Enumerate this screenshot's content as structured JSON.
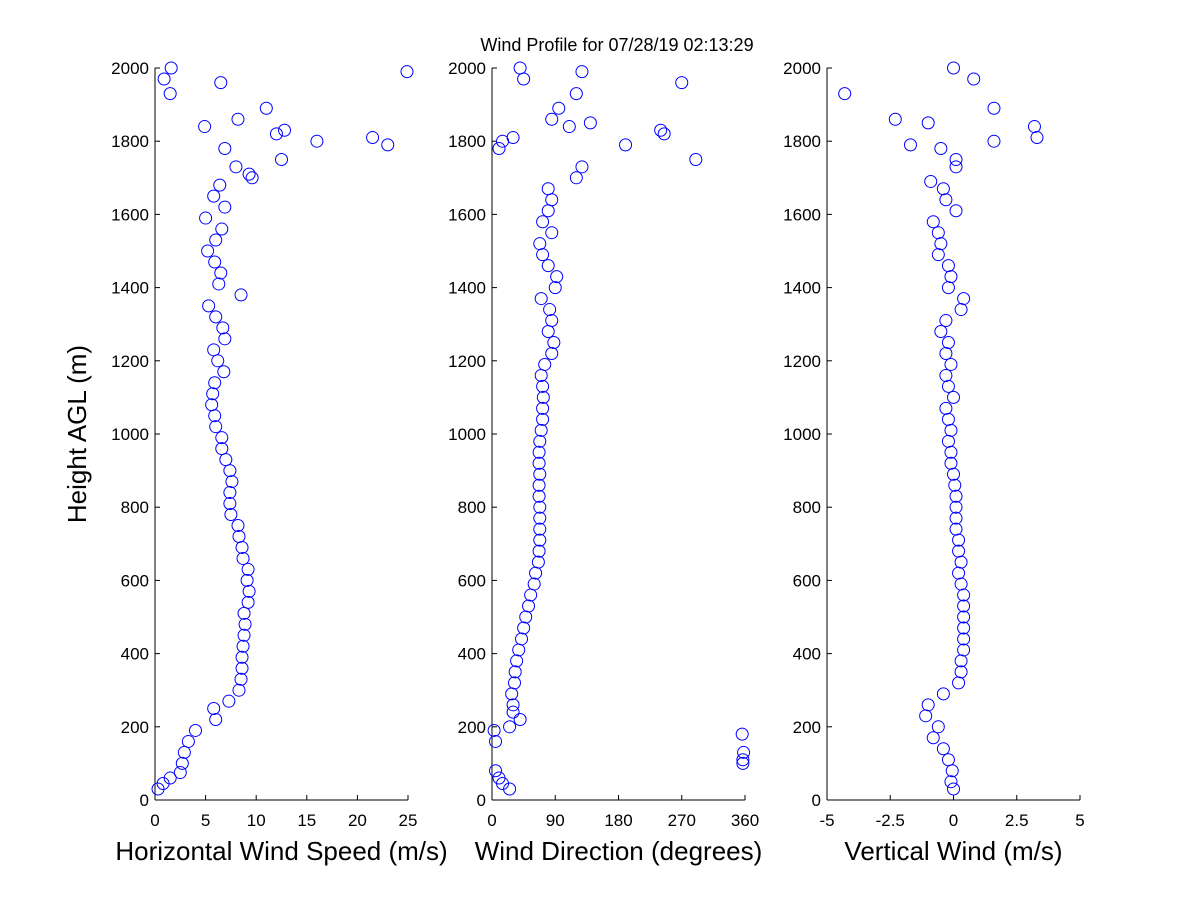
{
  "chart_data": [
    {
      "type": "scatter",
      "title": "Wind Profile for  07/28/19 02:13:29",
      "xlabel": "Horizontal Wind Speed (m/s)",
      "ylabel": "Height AGL (m)",
      "color": "#0000ff",
      "xlim": [
        0,
        25
      ],
      "xticks": [
        0,
        5,
        10,
        15,
        20,
        25
      ],
      "ylim": [
        0,
        2000
      ],
      "yticks": [
        0,
        200,
        400,
        600,
        800,
        1000,
        1200,
        1400,
        1600,
        1800,
        2000
      ],
      "x": [
        0.3,
        0.8,
        1.5,
        2.5,
        2.7,
        2.9,
        3.3,
        4,
        6,
        5.8,
        7.3,
        8.3,
        8.5,
        8.6,
        8.6,
        8.7,
        8.8,
        8.9,
        8.8,
        9.2,
        9.3,
        9.1,
        9.2,
        8.7,
        8.6,
        8.3,
        8.2,
        7.5,
        7.4,
        7.4,
        7.6,
        7.4,
        7.0,
        6.6,
        6.6,
        6.0,
        5.9,
        5.6,
        5.7,
        5.9,
        6.8,
        6.2,
        5.8,
        6.9,
        6.7,
        6.0,
        5.3,
        8.5,
        6.3,
        6.5,
        5.9,
        5.2,
        6.0,
        6.6,
        5.0,
        6.9,
        5.8,
        6.4,
        9.6,
        9.3,
        8,
        12.5,
        6.9,
        16,
        23,
        21.5,
        12,
        12.8,
        4.9,
        8.2,
        11,
        1.5,
        6.5,
        0.9,
        24.9,
        1.6
      ],
      "y": [
        30,
        45,
        60,
        75,
        100,
        130,
        160,
        190,
        220,
        250,
        270,
        300,
        330,
        360,
        390,
        420,
        450,
        480,
        510,
        540,
        570,
        600,
        630,
        660,
        690,
        720,
        750,
        780,
        810,
        840,
        870,
        900,
        930,
        960,
        990,
        1020,
        1050,
        1080,
        1110,
        1140,
        1170,
        1200,
        1230,
        1260,
        1290,
        1320,
        1350,
        1380,
        1410,
        1440,
        1470,
        1500,
        1530,
        1560,
        1590,
        1620,
        1650,
        1680,
        1700,
        1710,
        1730,
        1750,
        1780,
        1800,
        1790,
        1810,
        1820,
        1830,
        1840,
        1860,
        1890,
        1930,
        1960,
        1970,
        1990,
        2000
      ]
    },
    {
      "type": "scatter",
      "xlabel": "Wind Direction (degrees)",
      "color": "#0000ff",
      "xlim": [
        0,
        360
      ],
      "xticks": [
        0,
        90,
        180,
        270,
        360
      ],
      "ylim": [
        0,
        2000
      ],
      "yticks": [
        0,
        200,
        400,
        600,
        800,
        1000,
        1200,
        1400,
        1600,
        1800,
        2000
      ],
      "x": [
        25,
        15,
        10,
        5,
        357,
        357,
        358,
        5,
        356,
        3,
        25,
        40,
        30,
        30,
        28,
        32,
        33,
        35,
        38,
        42,
        45,
        48,
        52,
        55,
        60,
        62,
        66,
        67,
        68,
        68,
        68,
        68,
        67,
        67,
        68,
        67,
        67,
        68,
        70,
        72,
        72,
        73,
        72,
        70,
        75,
        85,
        88,
        80,
        85,
        82,
        70,
        90,
        92,
        80,
        72,
        68,
        85,
        72,
        80,
        85,
        80,
        120,
        128,
        290,
        10,
        190,
        15,
        30,
        245,
        240,
        110,
        140,
        85,
        95,
        120,
        270,
        45,
        128,
        40
      ],
      "y": [
        30,
        45,
        60,
        80,
        100,
        110,
        130,
        160,
        180,
        190,
        200,
        220,
        240,
        260,
        290,
        320,
        350,
        380,
        410,
        440,
        470,
        500,
        530,
        560,
        590,
        620,
        650,
        680,
        710,
        740,
        770,
        800,
        830,
        860,
        890,
        920,
        950,
        980,
        1010,
        1040,
        1070,
        1100,
        1130,
        1160,
        1190,
        1220,
        1250,
        1280,
        1310,
        1340,
        1370,
        1400,
        1430,
        1460,
        1490,
        1520,
        1550,
        1580,
        1610,
        1640,
        1670,
        1700,
        1730,
        1750,
        1780,
        1790,
        1800,
        1810,
        1820,
        1830,
        1840,
        1850,
        1860,
        1890,
        1930,
        1960,
        1970,
        1990,
        2000
      ]
    },
    {
      "type": "scatter",
      "xlabel": "Vertical Wind (m/s)",
      "color": "#0000ff",
      "xlim": [
        -5,
        5
      ],
      "xticks": [
        -5,
        -2.5,
        0,
        2.5,
        5
      ],
      "ylim": [
        0,
        2000
      ],
      "yticks": [
        0,
        200,
        400,
        600,
        800,
        1000,
        1200,
        1400,
        1600,
        1800,
        2000
      ],
      "x": [
        0,
        -0.1,
        -0.05,
        -0.2,
        -0.4,
        -0.8,
        -0.6,
        -1.1,
        -1.0,
        -0.4,
        0.2,
        0.3,
        0.3,
        0.4,
        0.4,
        0.4,
        0.4,
        0.4,
        0.4,
        0.3,
        0.2,
        0.3,
        0.2,
        0.2,
        0.1,
        0.1,
        0.1,
        0.1,
        0.05,
        0,
        -0.1,
        -0.1,
        -0.2,
        -0.1,
        -0.2,
        -0.3,
        0,
        -0.2,
        -0.3,
        -0.1,
        -0.3,
        -0.2,
        -0.5,
        -0.3,
        0.3,
        0.4,
        -0.2,
        -0.1,
        -0.2,
        -0.6,
        -0.5,
        -0.6,
        -0.8,
        0.1,
        -0.3,
        -0.4,
        -0.9,
        0.1,
        0.1,
        -0.5,
        -1.7,
        1.6,
        3.3,
        3.2,
        -1.0,
        -2.3,
        1.6,
        -4.3,
        0.8,
        0
      ],
      "y": [
        30,
        50,
        80,
        110,
        140,
        170,
        200,
        230,
        260,
        290,
        320,
        350,
        380,
        410,
        440,
        470,
        500,
        530,
        560,
        590,
        620,
        650,
        680,
        710,
        740,
        770,
        800,
        830,
        860,
        890,
        920,
        950,
        980,
        1010,
        1040,
        1070,
        1100,
        1130,
        1160,
        1190,
        1220,
        1250,
        1280,
        1310,
        1340,
        1370,
        1400,
        1430,
        1460,
        1490,
        1520,
        1550,
        1580,
        1610,
        1640,
        1670,
        1690,
        1730,
        1750,
        1780,
        1790,
        1800,
        1810,
        1840,
        1850,
        1860,
        1890,
        1930,
        1970,
        2000
      ]
    }
  ]
}
